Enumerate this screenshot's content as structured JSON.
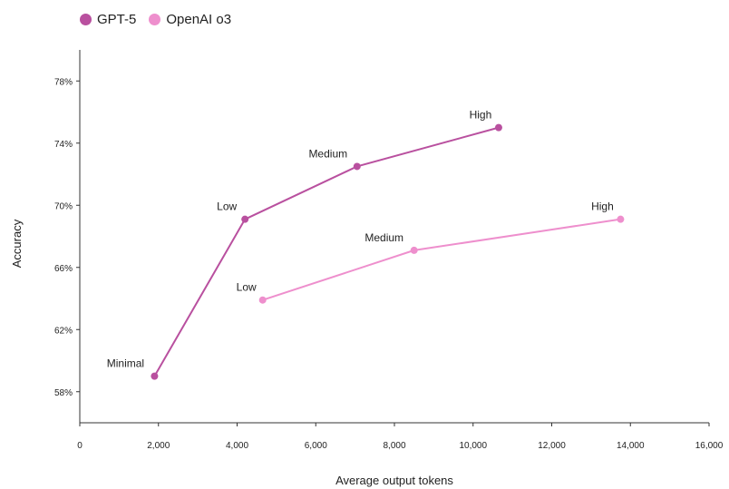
{
  "chart_data": {
    "type": "line",
    "xlabel": "Average output tokens",
    "ylabel": "Accuracy",
    "xlim": [
      0,
      16000
    ],
    "ylim": [
      56,
      80
    ],
    "xticks": [
      0,
      2000,
      4000,
      6000,
      8000,
      10000,
      12000,
      14000,
      16000
    ],
    "xtick_labels": [
      "0",
      "2,000",
      "4,000",
      "6,000",
      "8,000",
      "10,000",
      "12,000",
      "14,000",
      "16,000"
    ],
    "yticks": [
      58,
      62,
      66,
      70,
      74,
      78
    ],
    "ytick_labels": [
      "58%",
      "62%",
      "66%",
      "70%",
      "74%",
      "78%"
    ],
    "grid": false,
    "legend_position": "top-left",
    "series": [
      {
        "name": "GPT-5",
        "color": "#b9509f",
        "points": [
          {
            "x": 1900,
            "y": 59.0,
            "label": "Minimal"
          },
          {
            "x": 4200,
            "y": 69.1,
            "label": "Low"
          },
          {
            "x": 7050,
            "y": 72.5,
            "label": "Medium"
          },
          {
            "x": 10650,
            "y": 75.0,
            "label": "High"
          }
        ]
      },
      {
        "name": "OpenAI o3",
        "color": "#ee8fcd",
        "points": [
          {
            "x": 4650,
            "y": 63.9,
            "label": "Low"
          },
          {
            "x": 8500,
            "y": 67.1,
            "label": "Medium"
          },
          {
            "x": 13750,
            "y": 69.1,
            "label": "High"
          }
        ]
      }
    ]
  }
}
